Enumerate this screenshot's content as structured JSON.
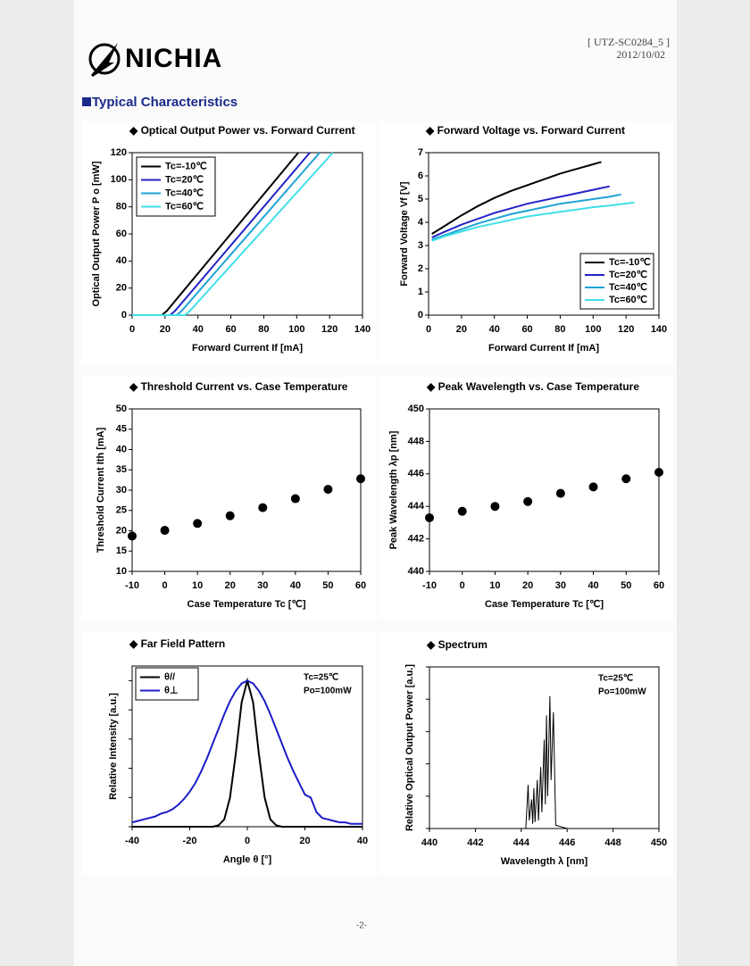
{
  "header": {
    "logo": "NICHIA",
    "doc_id": "[ UTZ-SC0284_5 ]",
    "date": "2012/10/02",
    "section": "Typical Characteristics"
  },
  "footer": "-2-",
  "chart_data": [
    {
      "type": "line",
      "title": "◆ Optical Output Power vs. Forward Current",
      "xlabel": "Forward Current If [mA]",
      "ylabel": "Optical Output Power P o [mW]",
      "xlim": [
        0,
        140
      ],
      "xticks": [
        0,
        20,
        40,
        60,
        80,
        100,
        120,
        140
      ],
      "ylim": [
        0,
        120
      ],
      "yticks": [
        0,
        20,
        40,
        60,
        80,
        100,
        120
      ],
      "legend": "upper left",
      "series": [
        {
          "name": "Tc=-10℃",
          "color": "#000000",
          "x": [
            0,
            18,
            21,
            101
          ],
          "values": [
            0,
            0,
            3,
            120
          ]
        },
        {
          "name": "Tc=20℃",
          "color": "#2323c8",
          "x": [
            0,
            23,
            26,
            108
          ],
          "values": [
            0,
            0,
            3,
            120
          ]
        },
        {
          "name": "Tc=40℃",
          "color": "#1fa3d6",
          "x": [
            0,
            27,
            30,
            114
          ],
          "values": [
            0,
            0,
            3,
            120
          ]
        },
        {
          "name": "Tc=60℃",
          "color": "#3fe0e8",
          "x": [
            0,
            32,
            35,
            122
          ],
          "values": [
            0,
            0,
            3,
            120
          ]
        }
      ]
    },
    {
      "type": "line",
      "title": "◆ Forward Voltage vs. Forward Current",
      "xlabel": "Forward Current If [mA]",
      "ylabel": "Forward Voltage Vf [V]",
      "xlim": [
        0,
        140
      ],
      "xticks": [
        0,
        20,
        40,
        60,
        80,
        100,
        120,
        140
      ],
      "ylim": [
        0,
        7
      ],
      "yticks": [
        0,
        1,
        2,
        3,
        4,
        5,
        6,
        7
      ],
      "legend": "lower right",
      "series": [
        {
          "name": "Tc=-10℃",
          "color": "#000000",
          "x": [
            2,
            10,
            20,
            30,
            40,
            50,
            60,
            70,
            80,
            90,
            100,
            105
          ],
          "values": [
            3.5,
            3.85,
            4.3,
            4.7,
            5.05,
            5.35,
            5.6,
            5.85,
            6.1,
            6.3,
            6.5,
            6.6
          ]
        },
        {
          "name": "Tc=20℃",
          "color": "#2323c8",
          "x": [
            2,
            10,
            20,
            30,
            40,
            50,
            60,
            70,
            80,
            90,
            100,
            110
          ],
          "values": [
            3.35,
            3.6,
            3.9,
            4.15,
            4.4,
            4.6,
            4.8,
            4.95,
            5.1,
            5.25,
            5.4,
            5.55
          ]
        },
        {
          "name": "Tc=40℃",
          "color": "#1fa3d6",
          "x": [
            2,
            10,
            20,
            30,
            40,
            50,
            60,
            70,
            80,
            90,
            100,
            110,
            117
          ],
          "values": [
            3.25,
            3.45,
            3.7,
            3.95,
            4.15,
            4.35,
            4.5,
            4.65,
            4.8,
            4.9,
            5.0,
            5.1,
            5.2
          ]
        },
        {
          "name": "Tc=60℃",
          "color": "#3fe0e8",
          "x": [
            2,
            10,
            20,
            30,
            40,
            50,
            60,
            70,
            80,
            90,
            100,
            110,
            125
          ],
          "values": [
            3.2,
            3.4,
            3.6,
            3.8,
            3.95,
            4.1,
            4.25,
            4.35,
            4.45,
            4.55,
            4.65,
            4.72,
            4.85
          ]
        }
      ]
    },
    {
      "type": "scatter",
      "title": "◆ Threshold Current vs. Case Temperature",
      "xlabel": "Case Temperature Tc [℃]",
      "ylabel": "Threshold Current Ith [mA]",
      "xlim": [
        -10,
        60
      ],
      "xticks": [
        -10,
        0,
        10,
        20,
        30,
        40,
        50,
        60
      ],
      "ylim": [
        10,
        50
      ],
      "yticks": [
        10,
        15,
        20,
        25,
        30,
        35,
        40,
        45,
        50
      ],
      "x": [
        -10,
        0,
        10,
        20,
        30,
        40,
        50,
        60
      ],
      "series": [
        {
          "color": "#000000",
          "values": [
            18.7,
            20.1,
            21.8,
            23.7,
            25.7,
            27.9,
            30.2,
            32.8
          ]
        }
      ]
    },
    {
      "type": "scatter",
      "title": "◆ Peak Wavelength vs. Case Temperature",
      "xlabel": "Case Temperature Tc [℃]",
      "ylabel": "Peak Wavelength λp [nm]",
      "xlim": [
        -10,
        60
      ],
      "xticks": [
        -10,
        0,
        10,
        20,
        30,
        40,
        50,
        60
      ],
      "ylim": [
        440,
        450
      ],
      "yticks": [
        440,
        442,
        444,
        446,
        448,
        450
      ],
      "x": [
        -10,
        0,
        10,
        20,
        30,
        40,
        50,
        60
      ],
      "series": [
        {
          "color": "#000000",
          "values": [
            443.3,
            443.7,
            444.0,
            444.3,
            444.8,
            445.2,
            445.7,
            446.1
          ]
        }
      ]
    },
    {
      "type": "line",
      "title": "◆ Far Field Pattern",
      "xlabel": "Angle θ [°]",
      "ylabel": "Relative Intensity [a.u.]",
      "xlim": [
        -40,
        40
      ],
      "xticks": [
        -40,
        -20,
        0,
        20,
        40
      ],
      "ylim": [
        0,
        1.1
      ],
      "yticks": [
        0,
        0.2,
        0.4,
        0.6,
        0.8,
        1.0
      ],
      "ytick_labels": false,
      "legend": "upper left",
      "annotations": [
        "Tc=25℃",
        "Po=100mW"
      ],
      "x": [
        -40,
        -38,
        -36,
        -34,
        -32,
        -30,
        -28,
        -26,
        -24,
        -22,
        -20,
        -18,
        -16,
        -14,
        -12,
        -10,
        -8,
        -6,
        -4,
        -2,
        0,
        2,
        4,
        6,
        8,
        10,
        12,
        14,
        16,
        18,
        20,
        22,
        24,
        26,
        28,
        30,
        32,
        34,
        36,
        38,
        40
      ],
      "series": [
        {
          "name": "θ//",
          "color": "#000000",
          "values": [
            0,
            0,
            0,
            0,
            0,
            0,
            0,
            0,
            0,
            0,
            0,
            0,
            0,
            0,
            0,
            0.01,
            0.05,
            0.2,
            0.5,
            0.85,
            1,
            0.85,
            0.5,
            0.2,
            0.05,
            0.01,
            0,
            0,
            0,
            0,
            0,
            0,
            0,
            0,
            0,
            0,
            0,
            0,
            0,
            0,
            0
          ]
        },
        {
          "name": "θ⊥",
          "color": "#1c1cc8",
          "values": [
            0.03,
            0.04,
            0.05,
            0.06,
            0.07,
            0.09,
            0.1,
            0.12,
            0.15,
            0.19,
            0.24,
            0.3,
            0.38,
            0.47,
            0.57,
            0.67,
            0.77,
            0.86,
            0.93,
            0.98,
            1,
            0.98,
            0.93,
            0.86,
            0.77,
            0.67,
            0.57,
            0.47,
            0.38,
            0.3,
            0.22,
            0.2,
            0.1,
            0.06,
            0.05,
            0.04,
            0.03,
            0.03,
            0.02,
            0.02,
            0.02
          ]
        }
      ]
    },
    {
      "type": "line",
      "title": "◆ Spectrum",
      "xlabel": "Wavelength λ [nm]",
      "ylabel": "Relative Optical Output Power [a.u.]",
      "xlim": [
        440,
        450
      ],
      "xticks": [
        440,
        442,
        444,
        446,
        448,
        450
      ],
      "ylim": [
        0,
        1
      ],
      "yticks": [
        0,
        0.2,
        0.4,
        0.6,
        0.8,
        1.0
      ],
      "ytick_labels": false,
      "annotations": [
        "Tc=25℃",
        "Po=100mW"
      ],
      "x": [
        440,
        444.2,
        444.3,
        444.35,
        444.45,
        444.5,
        444.55,
        444.6,
        444.7,
        444.75,
        444.85,
        444.9,
        445.0,
        445.05,
        445.1,
        445.15,
        445.25,
        445.3,
        445.4,
        445.5,
        446,
        450
      ],
      "series": [
        {
          "color": "#000000",
          "values": [
            0,
            0,
            0.27,
            0.05,
            0.18,
            0.03,
            0.25,
            0.04,
            0.3,
            0.05,
            0.38,
            0.1,
            0.55,
            0.15,
            0.7,
            0.2,
            0.82,
            0.3,
            0.72,
            0.02,
            0,
            0
          ]
        }
      ]
    }
  ]
}
